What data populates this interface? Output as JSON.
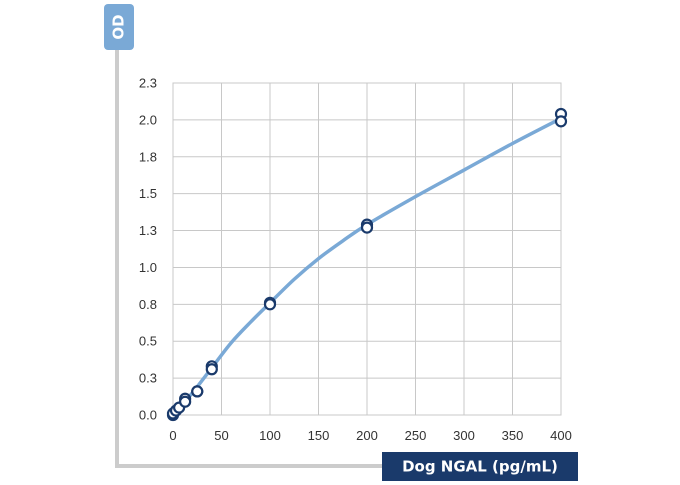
{
  "chart_data": {
    "type": "scatter",
    "xlabel": "Dog NGAL (pg/mL)",
    "ylabel": "OD",
    "xlim": [
      0,
      400
    ],
    "ylim": [
      0,
      2.25
    ],
    "x_ticks": [
      0,
      50,
      100,
      150,
      200,
      250,
      300,
      350,
      400
    ],
    "y_ticks": [
      0.0,
      0.25,
      0.5,
      0.75,
      1.0,
      1.25,
      1.5,
      1.75,
      2.0,
      2.25
    ],
    "y_tick_labels": [
      "0.0",
      "0.3",
      "0.5",
      "0.8",
      "1.0",
      "1.3",
      "1.5",
      "1.8",
      "2.0",
      "2.3"
    ],
    "grid": true,
    "series": [
      {
        "kind": "points",
        "x": [
          0,
          0,
          3.1,
          6.3,
          12.5,
          12.5,
          25,
          25,
          40,
          40,
          100,
          100,
          200,
          200,
          400,
          400
        ],
        "y": [
          0.0,
          0.01,
          0.03,
          0.05,
          0.11,
          0.09,
          0.16,
          0.16,
          0.33,
          0.31,
          0.76,
          0.75,
          1.29,
          1.27,
          2.04,
          1.99
        ]
      },
      {
        "kind": "fit-curve",
        "x": [
          0,
          10,
          20,
          40,
          60,
          80,
          100,
          125,
          150,
          175,
          200,
          250,
          300,
          350,
          400
        ],
        "y": [
          0.0,
          0.08,
          0.15,
          0.32,
          0.49,
          0.63,
          0.76,
          0.92,
          1.06,
          1.18,
          1.29,
          1.48,
          1.66,
          1.84,
          2.01
        ]
      }
    ],
    "colors": {
      "accent": "#7aa9d6",
      "marker": "#1a3a6b",
      "badge": "#1a3a6b",
      "ylabel_badge": "#7aa9d6",
      "frame": "#cccccc",
      "grid": "#c8c8c8"
    }
  }
}
